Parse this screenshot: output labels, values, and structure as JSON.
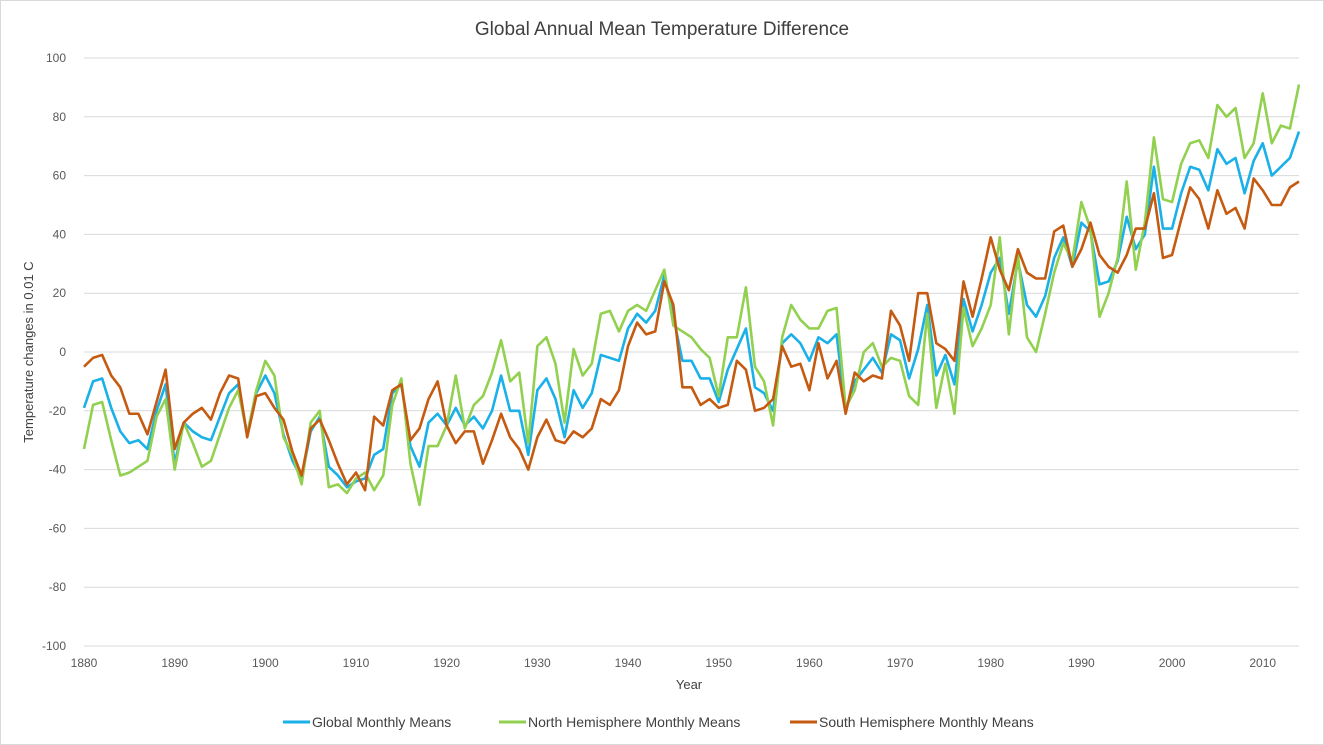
{
  "chart_data": {
    "type": "line",
    "title": "Global Annual Mean Temperature Difference",
    "xlabel": "Year",
    "ylabel": "Temperature changes in 0.01 C",
    "xlim": [
      1880,
      2014
    ],
    "ylim": [
      -100,
      100
    ],
    "x_ticks": [
      1880,
      1890,
      1900,
      1910,
      1920,
      1930,
      1940,
      1950,
      1960,
      1970,
      1980,
      1990,
      2000,
      2010
    ],
    "y_ticks": [
      -100,
      -80,
      -60,
      -40,
      -20,
      0,
      20,
      40,
      60,
      80,
      100
    ],
    "grid": "horizontal",
    "legend_position": "bottom",
    "x_start": 1880,
    "series": [
      {
        "name": "Global Monthly Means",
        "color": "#1ab0e8",
        "values": [
          -19,
          -10,
          -9,
          -19,
          -27,
          -31,
          -30,
          -33,
          -20,
          -11,
          -38,
          -24,
          -27,
          -29,
          -30,
          -22,
          -14,
          -11,
          -28,
          -14,
          -8,
          -14,
          -28,
          -37,
          -43,
          -27,
          -22,
          -39,
          -42,
          -46,
          -44,
          -43,
          -35,
          -33,
          -14,
          -11,
          -32,
          -39,
          -24,
          -21,
          -25,
          -19,
          -25,
          -22,
          -26,
          -20,
          -8,
          -20,
          -20,
          -35,
          -13,
          -9,
          -16,
          -29,
          -13,
          -19,
          -14,
          -1,
          -2,
          -3,
          8,
          13,
          10,
          14,
          26,
          12,
          -3,
          -3,
          -9,
          -9,
          -17,
          -6,
          1,
          8,
          -12,
          -14,
          -20,
          3,
          6,
          3,
          -3,
          5,
          3,
          6,
          -20,
          -10,
          -6,
          -2,
          -7,
          6,
          4,
          -9,
          1,
          16,
          -8,
          -1,
          -11,
          18,
          7,
          16,
          27,
          32,
          13,
          31,
          16,
          12,
          19,
          32,
          39,
          29,
          44,
          41,
          23,
          24,
          31,
          46,
          35,
          40,
          63,
          42,
          42,
          54,
          63,
          62,
          55,
          69,
          64,
          66,
          54,
          65,
          71,
          60,
          63,
          66,
          75
        ]
      },
      {
        "name": "North Hemisphere Monthly Means",
        "color": "#92d050",
        "values": [
          -33,
          -18,
          -17,
          -30,
          -42,
          -41,
          -39,
          -37,
          -22,
          -16,
          -40,
          -24,
          -31,
          -39,
          -37,
          -28,
          -19,
          -13,
          -28,
          -13,
          -3,
          -8,
          -29,
          -35,
          -45,
          -24,
          -20,
          -46,
          -45,
          -48,
          -43,
          -41,
          -47,
          -42,
          -18,
          -9,
          -38,
          -52,
          -32,
          -32,
          -25,
          -8,
          -26,
          -18,
          -15,
          -7,
          4,
          -10,
          -7,
          -31,
          2,
          5,
          -4,
          -24,
          1,
          -8,
          -4,
          13,
          14,
          7,
          14,
          16,
          14,
          21,
          28,
          9,
          7,
          5,
          1,
          -2,
          -15,
          5,
          5,
          22,
          -5,
          -10,
          -25,
          5,
          16,
          11,
          8,
          8,
          14,
          15,
          -19,
          -13,
          0,
          3,
          -5,
          -2,
          -3,
          -15,
          -18,
          13,
          -19,
          -4,
          -21,
          15,
          2,
          8,
          16,
          39,
          6,
          33,
          5,
          0,
          13,
          27,
          37,
          31,
          51,
          42,
          12,
          20,
          32,
          58,
          28,
          44,
          73,
          52,
          51,
          64,
          71,
          72,
          66,
          84,
          80,
          83,
          66,
          71,
          88,
          71,
          77,
          76,
          91
        ]
      },
      {
        "name": "South Hemisphere Monthly Means",
        "color": "#c55a11",
        "values": [
          -5,
          -2,
          -1,
          -8,
          -12,
          -21,
          -21,
          -28,
          -17,
          -6,
          -33,
          -24,
          -21,
          -19,
          -23,
          -14,
          -8,
          -9,
          -29,
          -15,
          -14,
          -19,
          -23,
          -34,
          -42,
          -26,
          -23,
          -30,
          -38,
          -45,
          -41,
          -47,
          -22,
          -25,
          -13,
          -11,
          -30,
          -26,
          -16,
          -10,
          -25,
          -31,
          -27,
          -27,
          -38,
          -30,
          -21,
          -29,
          -33,
          -40,
          -29,
          -23,
          -30,
          -31,
          -27,
          -29,
          -26,
          -16,
          -18,
          -13,
          2,
          10,
          6,
          7,
          24,
          16,
          -12,
          -12,
          -18,
          -16,
          -19,
          -18,
          -3,
          -6,
          -20,
          -19,
          -16,
          2,
          -5,
          -4,
          -13,
          3,
          -9,
          -3,
          -21,
          -7,
          -10,
          -8,
          -9,
          14,
          9,
          -3,
          20,
          20,
          3,
          1,
          -3,
          24,
          12,
          25,
          39,
          28,
          21,
          35,
          27,
          25,
          25,
          41,
          43,
          29,
          35,
          44,
          33,
          29,
          27,
          33,
          42,
          42,
          54,
          32,
          33,
          45,
          56,
          52,
          42,
          55,
          47,
          49,
          42,
          59,
          55,
          50,
          50,
          56,
          58
        ]
      }
    ]
  }
}
